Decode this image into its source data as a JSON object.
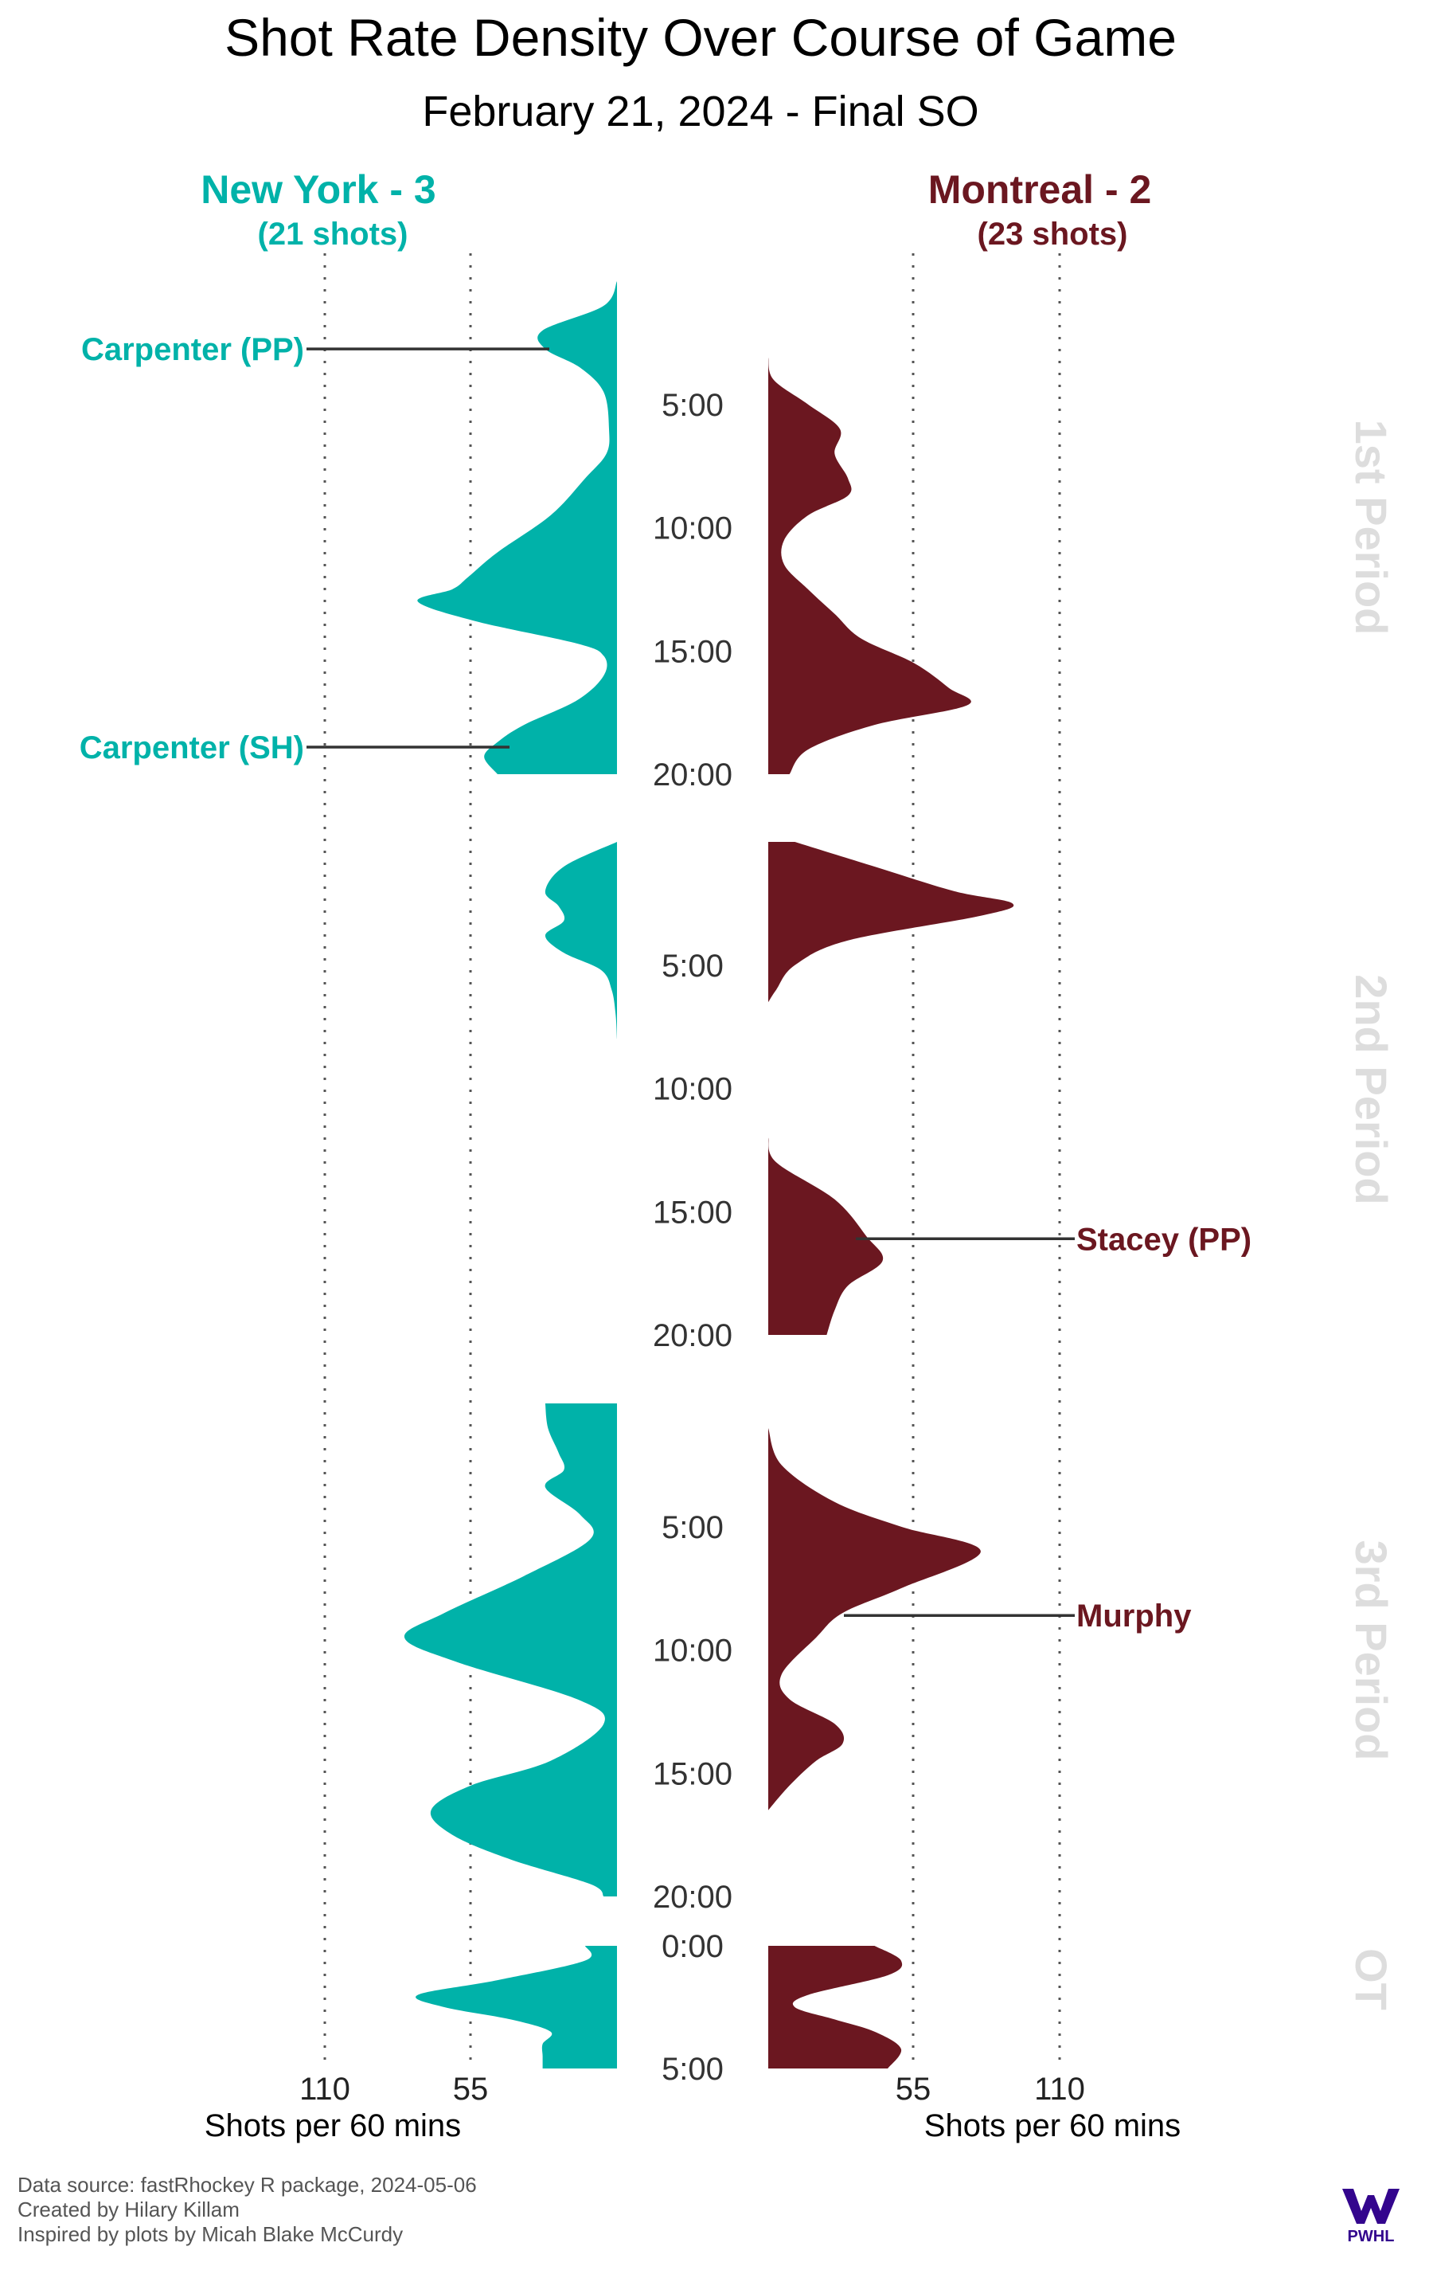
{
  "header": {
    "title": "Shot Rate Density Over Course of Game",
    "subtitle": "February 21, 2024 - Final SO"
  },
  "teams": {
    "home": {
      "label": "New York - 3",
      "shots": "(21 shots)",
      "color": "#00B2A9"
    },
    "away": {
      "label": "Montreal - 2",
      "shots": "(23 shots)",
      "color": "#6B1720"
    }
  },
  "axis": {
    "tick_labels_home": [
      "110",
      "55"
    ],
    "tick_labels_away": [
      "55",
      "110"
    ],
    "xlabel_home": "Shots per 60 mins",
    "xlabel_away": "Shots per 60 mins"
  },
  "periods": [
    {
      "label": "1st Period",
      "time_ticks": [
        "5:00",
        "10:00",
        "15:00",
        "20:00"
      ]
    },
    {
      "label": "2nd Period",
      "time_ticks": [
        "5:00",
        "10:00",
        "15:00",
        "20:00"
      ]
    },
    {
      "label": "3rd Period",
      "time_ticks": [
        "5:00",
        "10:00",
        "15:00",
        "20:00"
      ]
    },
    {
      "label": "OT",
      "time_ticks": [
        "0:00",
        "5:00"
      ]
    }
  ],
  "goals": [
    {
      "label": "Carpenter (PP)",
      "team": "home",
      "period": 0,
      "minute": 2.75
    },
    {
      "label": "Carpenter (SH)",
      "team": "home",
      "period": 0,
      "minute": 18.9
    },
    {
      "label": "Stacey (PP)",
      "team": "away",
      "period": 1,
      "minute": 16.1
    },
    {
      "label": "Murphy",
      "team": "away",
      "period": 2,
      "minute": 8.6
    }
  ],
  "footer": {
    "line1": "Data source: fastRhockey R package, 2024-05-06",
    "line2": "Created by Hilary Killam",
    "line3": "Inspired by plots by Micah Blake McCurdy",
    "logo_text": "PWHL"
  },
  "chart_data": {
    "type": "area",
    "title": "Shot Rate Density Over Course of Game",
    "subtitle": "February 21, 2024 - Final SO",
    "xlabel": "Shots per 60 mins",
    "ylabel": "",
    "xlim": [
      0,
      110
    ],
    "grid_x": [
      55,
      110
    ],
    "legend": "none",
    "series": [
      {
        "name": "New York - 3",
        "segments": [
          {
            "period": "1st Period",
            "t_range": [
              0,
              20
            ],
            "points": [
              [
                0,
                0
              ],
              [
                1,
                5
              ],
              [
                2,
                28
              ],
              [
                2.75,
                27
              ],
              [
                3.5,
                14
              ],
              [
                4.5,
                5
              ],
              [
                6,
                3
              ],
              [
                7,
                4
              ],
              [
                8,
                12
              ],
              [
                9.5,
                25
              ],
              [
                11,
                45
              ],
              [
                12,
                56
              ],
              [
                12.5,
                62
              ],
              [
                13,
                75
              ],
              [
                13.8,
                53
              ],
              [
                14.7,
                15
              ],
              [
                15.2,
                5
              ],
              [
                16,
                5
              ],
              [
                17,
                15
              ],
              [
                18,
                35
              ],
              [
                18.7,
                45
              ],
              [
                19.3,
                50
              ],
              [
                20,
                45
              ]
            ]
          },
          {
            "period": "2nd Period",
            "t_range": [
              0,
              8
            ],
            "points": [
              [
                0,
                0
              ],
              [
                1,
                20
              ],
              [
                2,
                27
              ],
              [
                2.6,
                22
              ],
              [
                3.2,
                20
              ],
              [
                3.8,
                27
              ],
              [
                4.5,
                20
              ],
              [
                5.2,
                6
              ],
              [
                6,
                2
              ],
              [
                7,
                0.5
              ],
              [
                8,
                0
              ]
            ]
          },
          {
            "period": "3rd Period",
            "t_range": [
              0,
              20
            ],
            "points": [
              [
                0,
                27
              ],
              [
                1,
                26
              ],
              [
                2,
                22
              ],
              [
                2.7,
                20
              ],
              [
                3.4,
                27
              ],
              [
                4.5,
                14
              ],
              [
                5.5,
                10
              ],
              [
                7,
                35
              ],
              [
                8.5,
                65
              ],
              [
                9.5,
                80
              ],
              [
                10.5,
                60
              ],
              [
                12,
                15
              ],
              [
                13,
                5
              ],
              [
                14.5,
                25
              ],
              [
                15.5,
                55
              ],
              [
                16.5,
                70
              ],
              [
                17.5,
                62
              ],
              [
                18.5,
                40
              ],
              [
                19.5,
                10
              ],
              [
                20,
                5
              ]
            ]
          },
          {
            "period": "OT",
            "t_range": [
              0,
              5
            ],
            "points": [
              [
                0,
                12
              ],
              [
                0.6,
                12
              ],
              [
                1.4,
                45
              ],
              [
                2,
                75
              ],
              [
                2.5,
                65
              ],
              [
                3,
                40
              ],
              [
                3.5,
                25
              ],
              [
                4,
                28
              ],
              [
                4.5,
                28
              ],
              [
                5,
                28
              ]
            ]
          }
        ]
      },
      {
        "name": "Montreal - 2",
        "segments": [
          {
            "period": "1st Period",
            "t_range": [
              3.1,
              20
            ],
            "points": [
              [
                3.1,
                0
              ],
              [
                4,
                2
              ],
              [
                5,
                15
              ],
              [
                6,
                27
              ],
              [
                7,
                25
              ],
              [
                8,
                30
              ],
              [
                8.7,
                30
              ],
              [
                9.5,
                15
              ],
              [
                10.5,
                6
              ],
              [
                11.5,
                6
              ],
              [
                12.5,
                15
              ],
              [
                13.5,
                25
              ],
              [
                14.5,
                35
              ],
              [
                15.5,
                55
              ],
              [
                16.5,
                68
              ],
              [
                17.2,
                75
              ],
              [
                18,
                40
              ],
              [
                19,
                15
              ],
              [
                20,
                8
              ]
            ]
          },
          {
            "period": "2nd Period",
            "t_range": [
              0,
              6.5
            ],
            "points": [
              [
                0,
                10
              ],
              [
                1,
                40
              ],
              [
                2,
                70
              ],
              [
                2.5,
                92
              ],
              [
                3,
                80
              ],
              [
                4,
                30
              ],
              [
                5,
                10
              ],
              [
                6,
                3
              ],
              [
                6.5,
                0
              ]
            ]
          },
          {
            "period": "2nd Period",
            "t_range": [
              12,
              20
            ],
            "points": [
              [
                12,
                0
              ],
              [
                13,
                3
              ],
              [
                14.5,
                25
              ],
              [
                16,
                37
              ],
              [
                17,
                43
              ],
              [
                18,
                30
              ],
              [
                19,
                25
              ],
              [
                20,
                22
              ]
            ]
          },
          {
            "period": "3rd Period",
            "t_range": [
              1,
              16.5
            ],
            "points": [
              [
                1,
                0
              ],
              [
                2.5,
                5
              ],
              [
                4,
                25
              ],
              [
                5,
                50
              ],
              [
                6,
                80
              ],
              [
                7.5,
                50
              ],
              [
                8.5,
                28
              ],
              [
                9.5,
                18
              ],
              [
                11,
                5
              ],
              [
                12,
                8
              ],
              [
                13,
                25
              ],
              [
                13.8,
                28
              ],
              [
                14.5,
                18
              ],
              [
                15.5,
                8
              ],
              [
                16.5,
                0
              ]
            ]
          },
          {
            "period": "OT",
            "t_range": [
              0,
              5
            ],
            "points": [
              [
                0,
                40
              ],
              [
                0.6,
                50
              ],
              [
                1.2,
                45
              ],
              [
                2,
                15
              ],
              [
                2.5,
                10
              ],
              [
                3,
                25
              ],
              [
                3.5,
                40
              ],
              [
                4.2,
                50
              ],
              [
                5,
                45
              ]
            ]
          }
        ]
      }
    ]
  }
}
